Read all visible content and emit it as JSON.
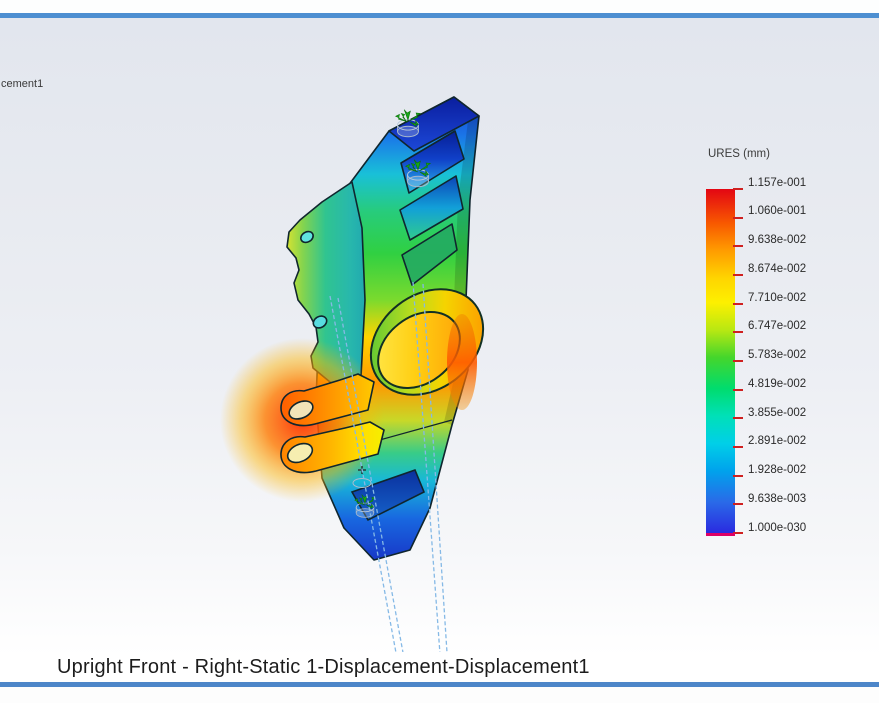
{
  "window": {
    "top_divider_color": "#4d8fd1",
    "bottom_divider_color": "#4d86c9"
  },
  "feature_tree": {
    "truncated_item": "cement1"
  },
  "viewport": {
    "caption": "Upright Front - Right-Static 1-Displacement-Displacement1"
  },
  "legend": {
    "title": "URES (mm)",
    "values": [
      "1.157e-001",
      "1.060e-001",
      "9.638e-002",
      "8.674e-002",
      "7.710e-002",
      "6.747e-002",
      "5.783e-002",
      "4.819e-002",
      "3.855e-002",
      "2.891e-002",
      "1.928e-002",
      "9.638e-003",
      "1.000e-030"
    ],
    "tick_color": "#cf2020",
    "min_cap_color": "#dd0066",
    "gradient_stops": [
      "#e30613 0%",
      "#f85900 10%",
      "#ff9d00 18%",
      "#ffd500 26%",
      "#fdf000 33%",
      "#b8e812 41%",
      "#44d62c 49%",
      "#00dc6e 58%",
      "#00e0b8 66%",
      "#00cfe8 74%",
      "#00a2ec 82%",
      "#2a6ae8 91%",
      "#2a2ae0 100%"
    ]
  }
}
